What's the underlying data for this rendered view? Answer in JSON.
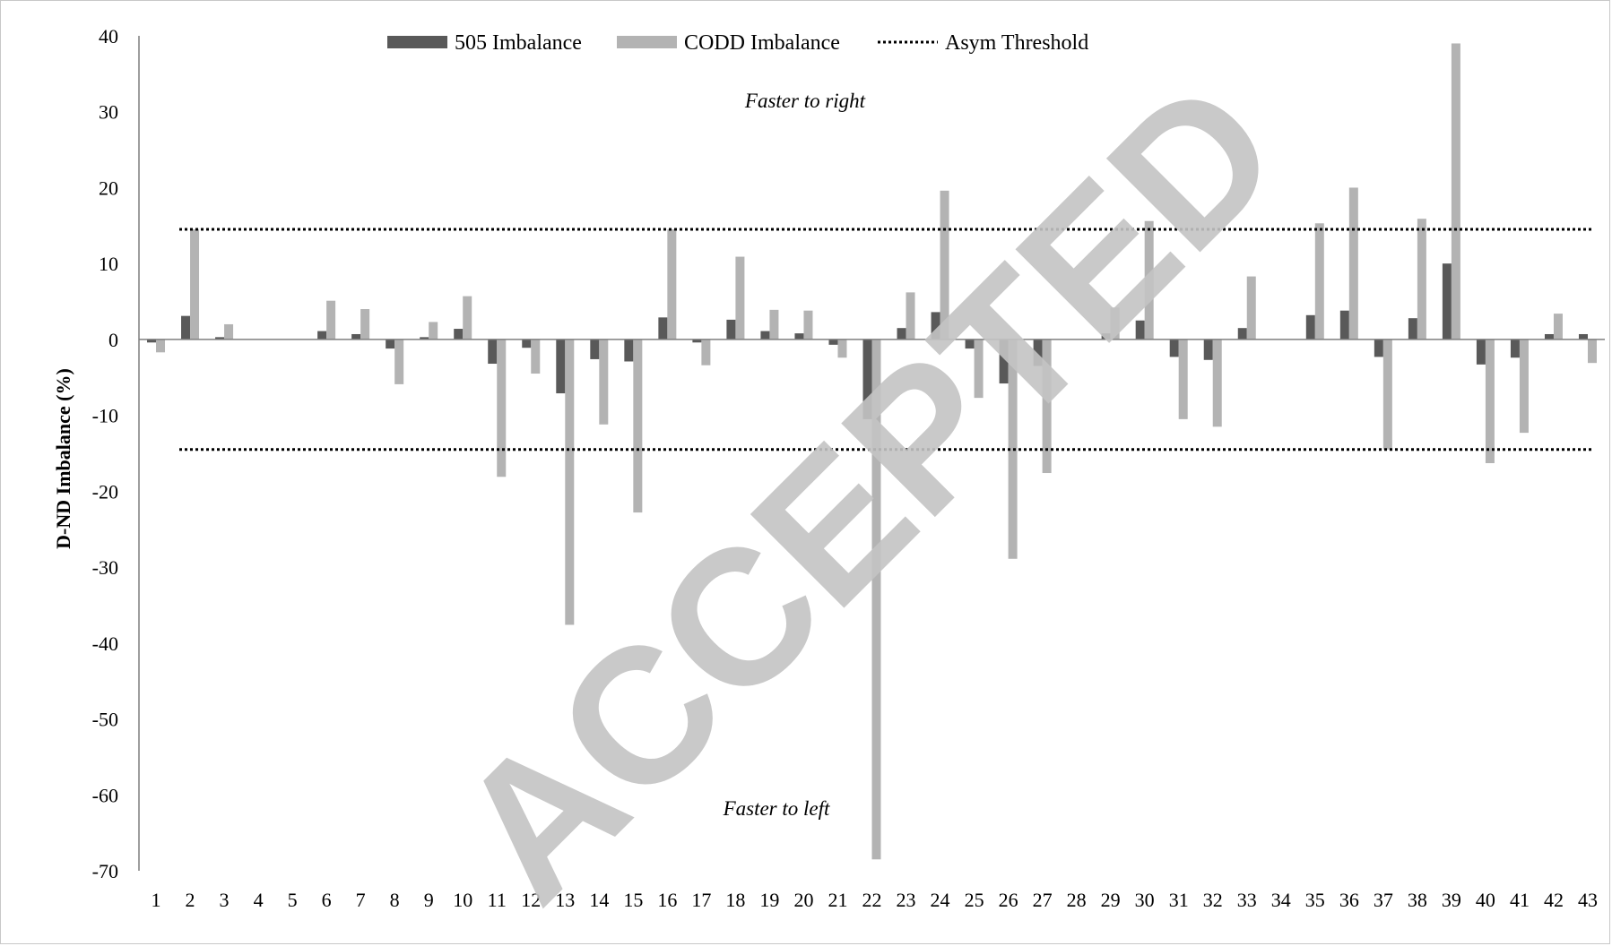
{
  "chart_data": {
    "type": "bar",
    "ylabel": "D-ND Imbalance (%)",
    "ylim": [
      -70,
      40
    ],
    "yticks": [
      40,
      30,
      20,
      10,
      0,
      -10,
      -20,
      -30,
      -40,
      -50,
      -60,
      -70
    ],
    "categories": [
      "1",
      "2",
      "3",
      "4",
      "5",
      "6",
      "7",
      "8",
      "9",
      "10",
      "11",
      "12",
      "13",
      "14",
      "15",
      "16",
      "17",
      "18",
      "19",
      "20",
      "21",
      "22",
      "23",
      "24",
      "25",
      "26",
      "27",
      "28",
      "29",
      "30",
      "31",
      "32",
      "33",
      "34",
      "35",
      "36",
      "37",
      "38",
      "39",
      "40",
      "41",
      "42",
      "43"
    ],
    "series": [
      {
        "name": "505 Imbalance",
        "color": "#595959",
        "values": [
          -0.4,
          3.1,
          0.3,
          0,
          0,
          1.1,
          0.7,
          -1.2,
          0.3,
          1.4,
          -3.2,
          -1.1,
          -7.1,
          -2.6,
          -2.9,
          2.9,
          -0.4,
          2.6,
          1.1,
          0.8,
          -0.7,
          -10.5,
          1.5,
          3.6,
          -1.2,
          -5.8,
          -3.5,
          0,
          0.8,
          2.5,
          -2.3,
          -2.7,
          1.5,
          0,
          3.2,
          3.8,
          -2.3,
          2.8,
          10.0,
          -3.3,
          -2.4,
          0.7,
          0.7
        ]
      },
      {
        "name": "CODD Imbalance",
        "color": "#b3b3b3",
        "values": [
          -1.7,
          14.5,
          2.0,
          0,
          0,
          5.1,
          4.0,
          -5.9,
          2.3,
          5.7,
          -18.1,
          -4.5,
          -37.6,
          -11.2,
          -22.8,
          14.5,
          -3.4,
          10.9,
          3.9,
          3.8,
          -2.4,
          -68.5,
          6.2,
          19.6,
          -7.7,
          -28.9,
          -17.6,
          0,
          4.2,
          15.6,
          -10.5,
          -11.5,
          8.3,
          0,
          15.3,
          20.0,
          -14.5,
          15.9,
          39.0,
          -16.3,
          -12.3,
          3.4,
          -3.1
        ]
      }
    ],
    "threshold": {
      "name": "Asym Threshold",
      "values": [
        14.5,
        -14.5
      ]
    },
    "annotations": {
      "top": "Faster to right",
      "bottom": "Faster to left"
    },
    "legend_position": "top-center",
    "grid": false
  },
  "watermark": "ACCEPTED"
}
